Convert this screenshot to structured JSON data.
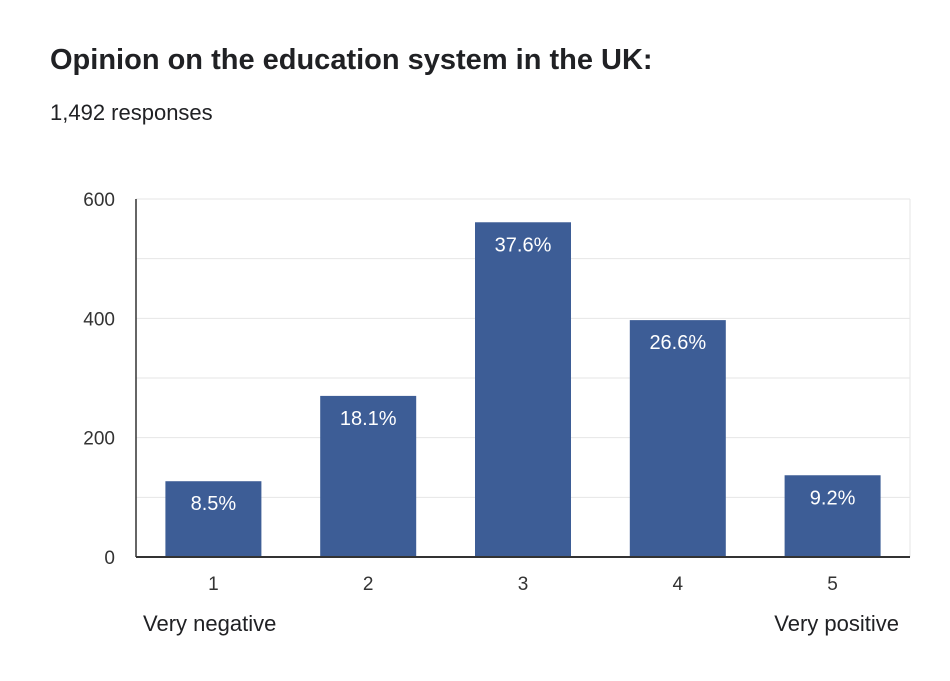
{
  "header": {
    "title": "Opinion on the education system in the UK:",
    "responses": "1,492 responses"
  },
  "scale": {
    "low_label": "Very negative",
    "high_label": "Very positive"
  },
  "chart_data": {
    "type": "bar",
    "categories": [
      "1",
      "2",
      "3",
      "4",
      "5"
    ],
    "values": [
      127,
      270,
      561,
      397,
      137
    ],
    "data_labels": [
      "8.5%",
      "18.1%",
      "37.6%",
      "26.6%",
      "9.2%"
    ],
    "yticks": [
      0,
      200,
      400,
      600
    ],
    "ylim": [
      0,
      600
    ],
    "grid": true,
    "bar_color": "#3d5d96",
    "grid_color": "#e6e6e6",
    "axis_color": "#333333"
  }
}
